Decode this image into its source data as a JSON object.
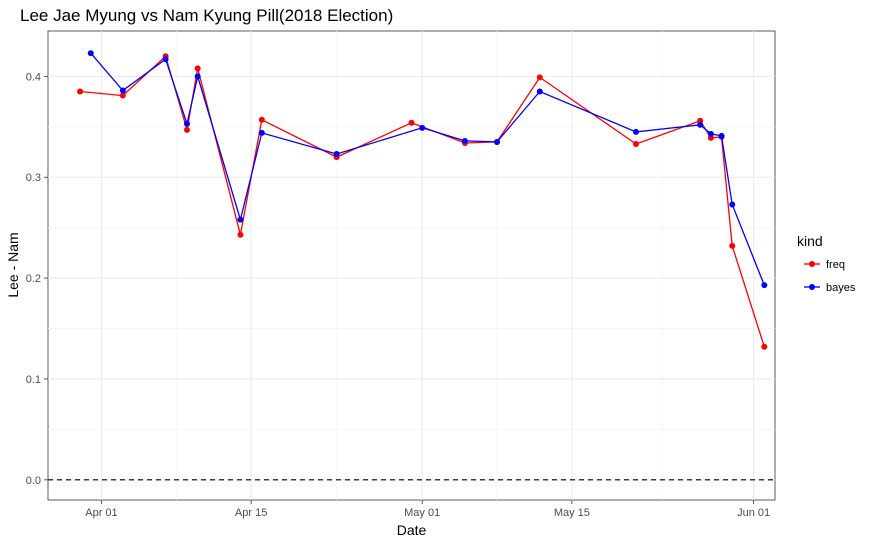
{
  "chart_data": {
    "type": "line",
    "title": "Lee Jae Myung vs Nam Kyung Pill(2018 Election)",
    "xlabel": "Date",
    "ylabel": "Lee - Nam",
    "x_axis_type": "date",
    "xlim": [
      "2018-03-27",
      "2018-06-03"
    ],
    "ylim": [
      -0.02,
      0.445
    ],
    "x_ticks": [
      {
        "value": "2018-04-01",
        "label": "Apr 01"
      },
      {
        "value": "2018-04-15",
        "label": "Apr 15"
      },
      {
        "value": "2018-05-01",
        "label": "May 01"
      },
      {
        "value": "2018-05-15",
        "label": "May 15"
      },
      {
        "value": "2018-06-01",
        "label": "Jun 01"
      }
    ],
    "y_ticks": [
      {
        "value": 0.0,
        "label": "0.0"
      },
      {
        "value": 0.1,
        "label": "0.1"
      },
      {
        "value": 0.2,
        "label": "0.2"
      },
      {
        "value": 0.3,
        "label": "0.3"
      },
      {
        "value": 0.4,
        "label": "0.4"
      }
    ],
    "reference_line": {
      "y": 0,
      "style": "dashed",
      "color": "#000000"
    },
    "grid": true,
    "legend": {
      "title": "kind",
      "position": "right"
    },
    "series": [
      {
        "name": "freq",
        "color": "#ff0000",
        "points": [
          {
            "x": "2018-03-30",
            "y": 0.385
          },
          {
            "x": "2018-04-03",
            "y": 0.381
          },
          {
            "x": "2018-04-07",
            "y": 0.42
          },
          {
            "x": "2018-04-09",
            "y": 0.347
          },
          {
            "x": "2018-04-10",
            "y": 0.408
          },
          {
            "x": "2018-04-14",
            "y": 0.243
          },
          {
            "x": "2018-04-16",
            "y": 0.357
          },
          {
            "x": "2018-04-23",
            "y": 0.32
          },
          {
            "x": "2018-04-30",
            "y": 0.354
          },
          {
            "x": "2018-05-05",
            "y": 0.334
          },
          {
            "x": "2018-05-08",
            "y": 0.335
          },
          {
            "x": "2018-05-12",
            "y": 0.399
          },
          {
            "x": "2018-05-21",
            "y": 0.333
          },
          {
            "x": "2018-05-27",
            "y": 0.356
          },
          {
            "x": "2018-05-28",
            "y": 0.339
          },
          {
            "x": "2018-05-29",
            "y": 0.34
          },
          {
            "x": "2018-05-30",
            "y": 0.232
          },
          {
            "x": "2018-06-02",
            "y": 0.132
          }
        ]
      },
      {
        "name": "bayes",
        "color": "#0000ff",
        "points": [
          {
            "x": "2018-03-31",
            "y": 0.423
          },
          {
            "x": "2018-04-03",
            "y": 0.386
          },
          {
            "x": "2018-04-07",
            "y": 0.417
          },
          {
            "x": "2018-04-09",
            "y": 0.353
          },
          {
            "x": "2018-04-10",
            "y": 0.4
          },
          {
            "x": "2018-04-14",
            "y": 0.258
          },
          {
            "x": "2018-04-16",
            "y": 0.344
          },
          {
            "x": "2018-04-23",
            "y": 0.323
          },
          {
            "x": "2018-05-01",
            "y": 0.349
          },
          {
            "x": "2018-05-05",
            "y": 0.336
          },
          {
            "x": "2018-05-08",
            "y": 0.335
          },
          {
            "x": "2018-05-12",
            "y": 0.385
          },
          {
            "x": "2018-05-21",
            "y": 0.345
          },
          {
            "x": "2018-05-27",
            "y": 0.352
          },
          {
            "x": "2018-05-28",
            "y": 0.343
          },
          {
            "x": "2018-05-29",
            "y": 0.341
          },
          {
            "x": "2018-05-30",
            "y": 0.273
          },
          {
            "x": "2018-06-02",
            "y": 0.193
          }
        ]
      }
    ]
  }
}
